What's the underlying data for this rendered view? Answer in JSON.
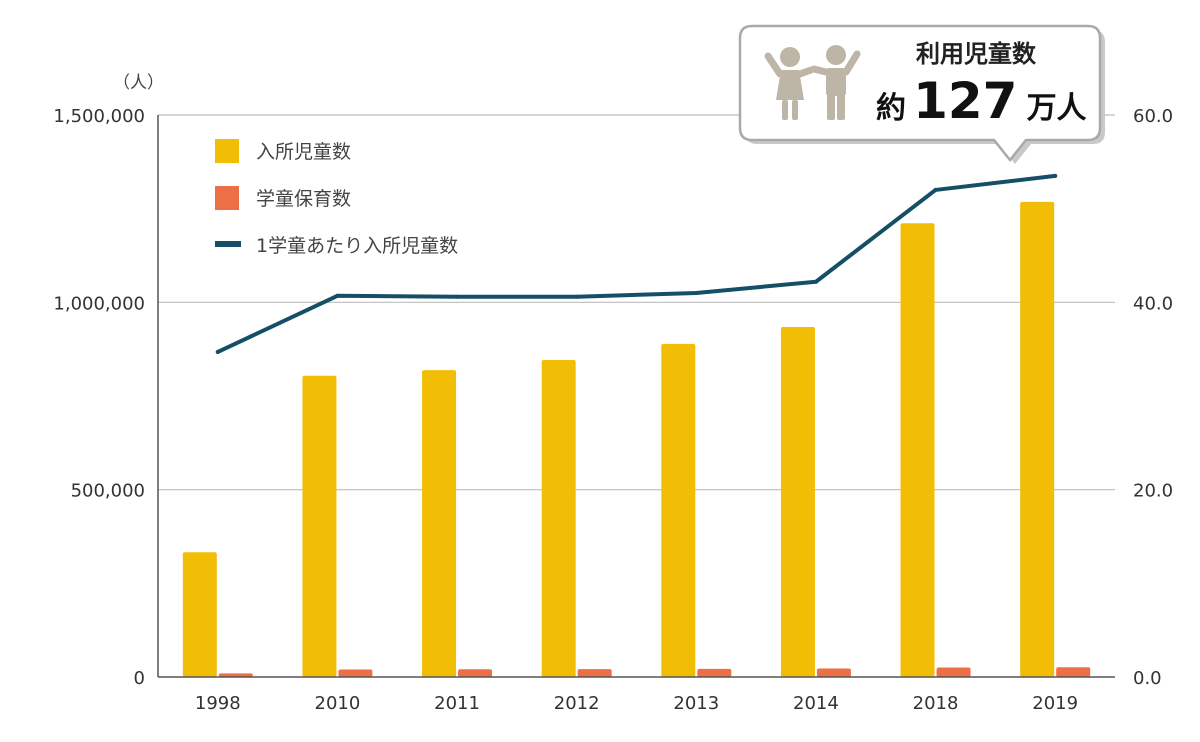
{
  "chart_data": {
    "type": "bar",
    "categories": [
      "1998",
      "2010",
      "2011",
      "2012",
      "2013",
      "2014",
      "2018",
      "2019"
    ],
    "series": [
      {
        "name": "入所児童数",
        "kind": "bar",
        "axis": "left",
        "color": "#f2bd05",
        "values": [
          333000,
          804000,
          819000,
          846000,
          889000,
          934000,
          1211000,
          1268000
        ]
      },
      {
        "name": "学童保育数",
        "kind": "bar",
        "axis": "left",
        "color": "#ed6f45",
        "values": [
          9600,
          19900,
          20600,
          21100,
          21600,
          22600,
          25300,
          25900
        ]
      },
      {
        "name": "1学童あたり入所児童数",
        "kind": "line",
        "axis": "right",
        "color": "#144f65",
        "values": [
          34.7,
          40.7,
          40.6,
          40.6,
          41.0,
          42.2,
          52.0,
          53.5
        ]
      }
    ],
    "y_left": {
      "range": [
        0,
        1500000
      ],
      "ticks": [
        "0",
        "500,000",
        "1,000,000",
        "1,500,000"
      ],
      "unit": "（人）"
    },
    "y_right": {
      "range": [
        0,
        60
      ],
      "ticks": [
        "0.0",
        "20.0",
        "40.0",
        "60.0"
      ]
    },
    "grid": true,
    "legend_position": "top-left"
  },
  "callout": {
    "title": "利用児童数",
    "prefix": "約",
    "number": "127",
    "suffix": "万人",
    "icon": "children-icon",
    "icon_color": "#bdb5a5"
  }
}
